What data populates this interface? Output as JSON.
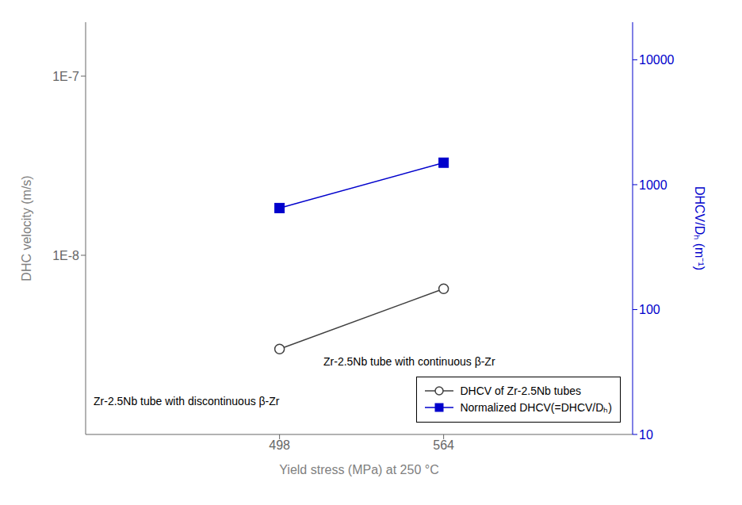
{
  "chart_data": {
    "type": "line",
    "xlabel": "Yield stress (MPa) at 250 °C",
    "ylabel": "DHC velocity (m/s)",
    "y2label": "DHCV/Dₕ (m⁻¹)",
    "x": [
      498,
      564
    ],
    "series": [
      {
        "name": "DHCV of Zr-2.5Nb tubes",
        "color": "#404040",
        "marker": "circle",
        "values": [
          3e-09,
          6.5e-09
        ]
      },
      {
        "name": "Normalized DHCV(=DHCV/Dₕ)",
        "color": "#0000cc",
        "marker": "square",
        "axis": "y2",
        "values": [
          650,
          1500
        ]
      }
    ],
    "xlim": [
      420,
      640
    ],
    "xticks": [
      498,
      564
    ],
    "ylim": [
      1e-09,
      2e-07
    ],
    "yticks": [
      {
        "value": 1e-08,
        "label": "1E-8"
      },
      {
        "value": 1e-07,
        "label": "1E-7"
      }
    ],
    "y2lim": [
      10,
      20000
    ],
    "y2ticks": [
      10,
      100,
      1000,
      10000
    ],
    "log": "y",
    "legend": "lower right",
    "annotations": [
      "Zr-2.5Nb tube with discontinuous β-Zr",
      "Zr-2.5Nb tube with continuous β-Zr"
    ]
  }
}
